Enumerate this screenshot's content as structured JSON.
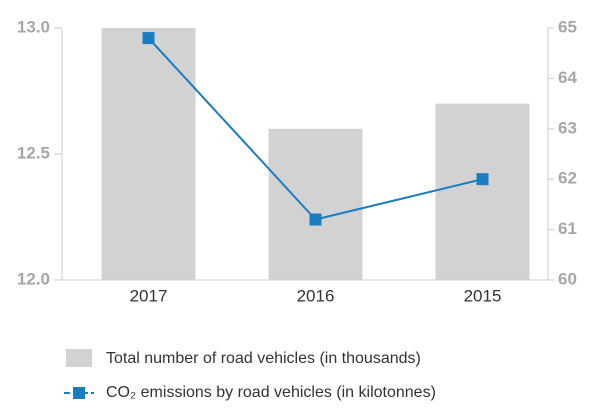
{
  "chart_data": {
    "type": "bar-line",
    "categories": [
      "2017",
      "2016",
      "2015"
    ],
    "series": [
      {
        "name": "Total number of road vehicles (in thousands)",
        "color": "#d2d2d2",
        "type": "bar",
        "values": [
          13.0,
          12.6,
          12.7
        ]
      },
      {
        "name": "CO₂ emissions by road vehicles (in kilotonnes)",
        "color": "#1a7cc1",
        "type": "line",
        "axis": "y2",
        "values": [
          64.8,
          61.2,
          62.0
        ]
      }
    ],
    "ylim": [
      12.0,
      13.0
    ],
    "yticks": [
      {
        "value": 12.0,
        "label": "12.0"
      },
      {
        "value": 12.5,
        "label": "12.5"
      },
      {
        "value": 13.0,
        "label": "13.0"
      }
    ],
    "y2lim": [
      60,
      65
    ],
    "y2ticks": [
      60,
      61,
      62,
      63,
      64,
      65
    ]
  }
}
